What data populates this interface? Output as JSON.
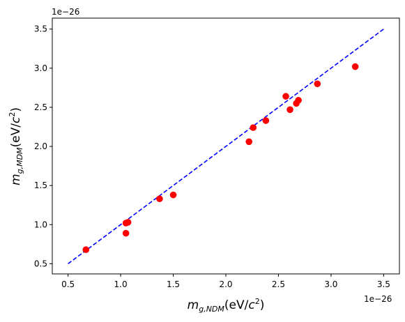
{
  "chart_data": {
    "type": "scatter",
    "xlabel": "m_{g,NDM}(eV/c^2)",
    "ylabel": "m_{g,MDM}(eV/c^2)",
    "x_offset_label": "1e−26",
    "y_offset_label": "1e−26",
    "xlim": [
      0.35,
      3.65
    ],
    "ylim": [
      0.37,
      3.64
    ],
    "xticks": [
      0.5,
      1.0,
      1.5,
      2.0,
      2.5,
      3.0,
      3.5
    ],
    "xtick_labels": [
      "0.5",
      "1.0",
      "1.5",
      "2.0",
      "2.5",
      "3.0",
      "3.5"
    ],
    "yticks": [
      0.5,
      1.0,
      1.5,
      2.0,
      2.5,
      3.0,
      3.5
    ],
    "ytick_labels": [
      "0.5",
      "1.0",
      "1.5",
      "2.0",
      "2.5",
      "3.0",
      "3.5"
    ],
    "grid": false,
    "scale": "1e-26",
    "series": [
      {
        "type": "scatter",
        "color": "#ff0000",
        "points": [
          {
            "x": 0.67,
            "y": 0.68
          },
          {
            "x": 1.05,
            "y": 1.02
          },
          {
            "x": 1.07,
            "y": 1.03
          },
          {
            "x": 1.05,
            "y": 0.89
          },
          {
            "x": 1.37,
            "y": 1.33
          },
          {
            "x": 1.5,
            "y": 1.38
          },
          {
            "x": 2.22,
            "y": 2.06
          },
          {
            "x": 2.26,
            "y": 2.24
          },
          {
            "x": 2.38,
            "y": 2.33
          },
          {
            "x": 2.57,
            "y": 2.64
          },
          {
            "x": 2.61,
            "y": 2.47
          },
          {
            "x": 2.67,
            "y": 2.55
          },
          {
            "x": 2.69,
            "y": 2.59
          },
          {
            "x": 2.87,
            "y": 2.8
          },
          {
            "x": 3.23,
            "y": 3.02
          }
        ]
      },
      {
        "type": "line",
        "style": "dashed",
        "color": "#0000ff",
        "points": [
          {
            "x": 0.5,
            "y": 0.5
          },
          {
            "x": 3.5,
            "y": 3.5
          }
        ]
      }
    ]
  }
}
